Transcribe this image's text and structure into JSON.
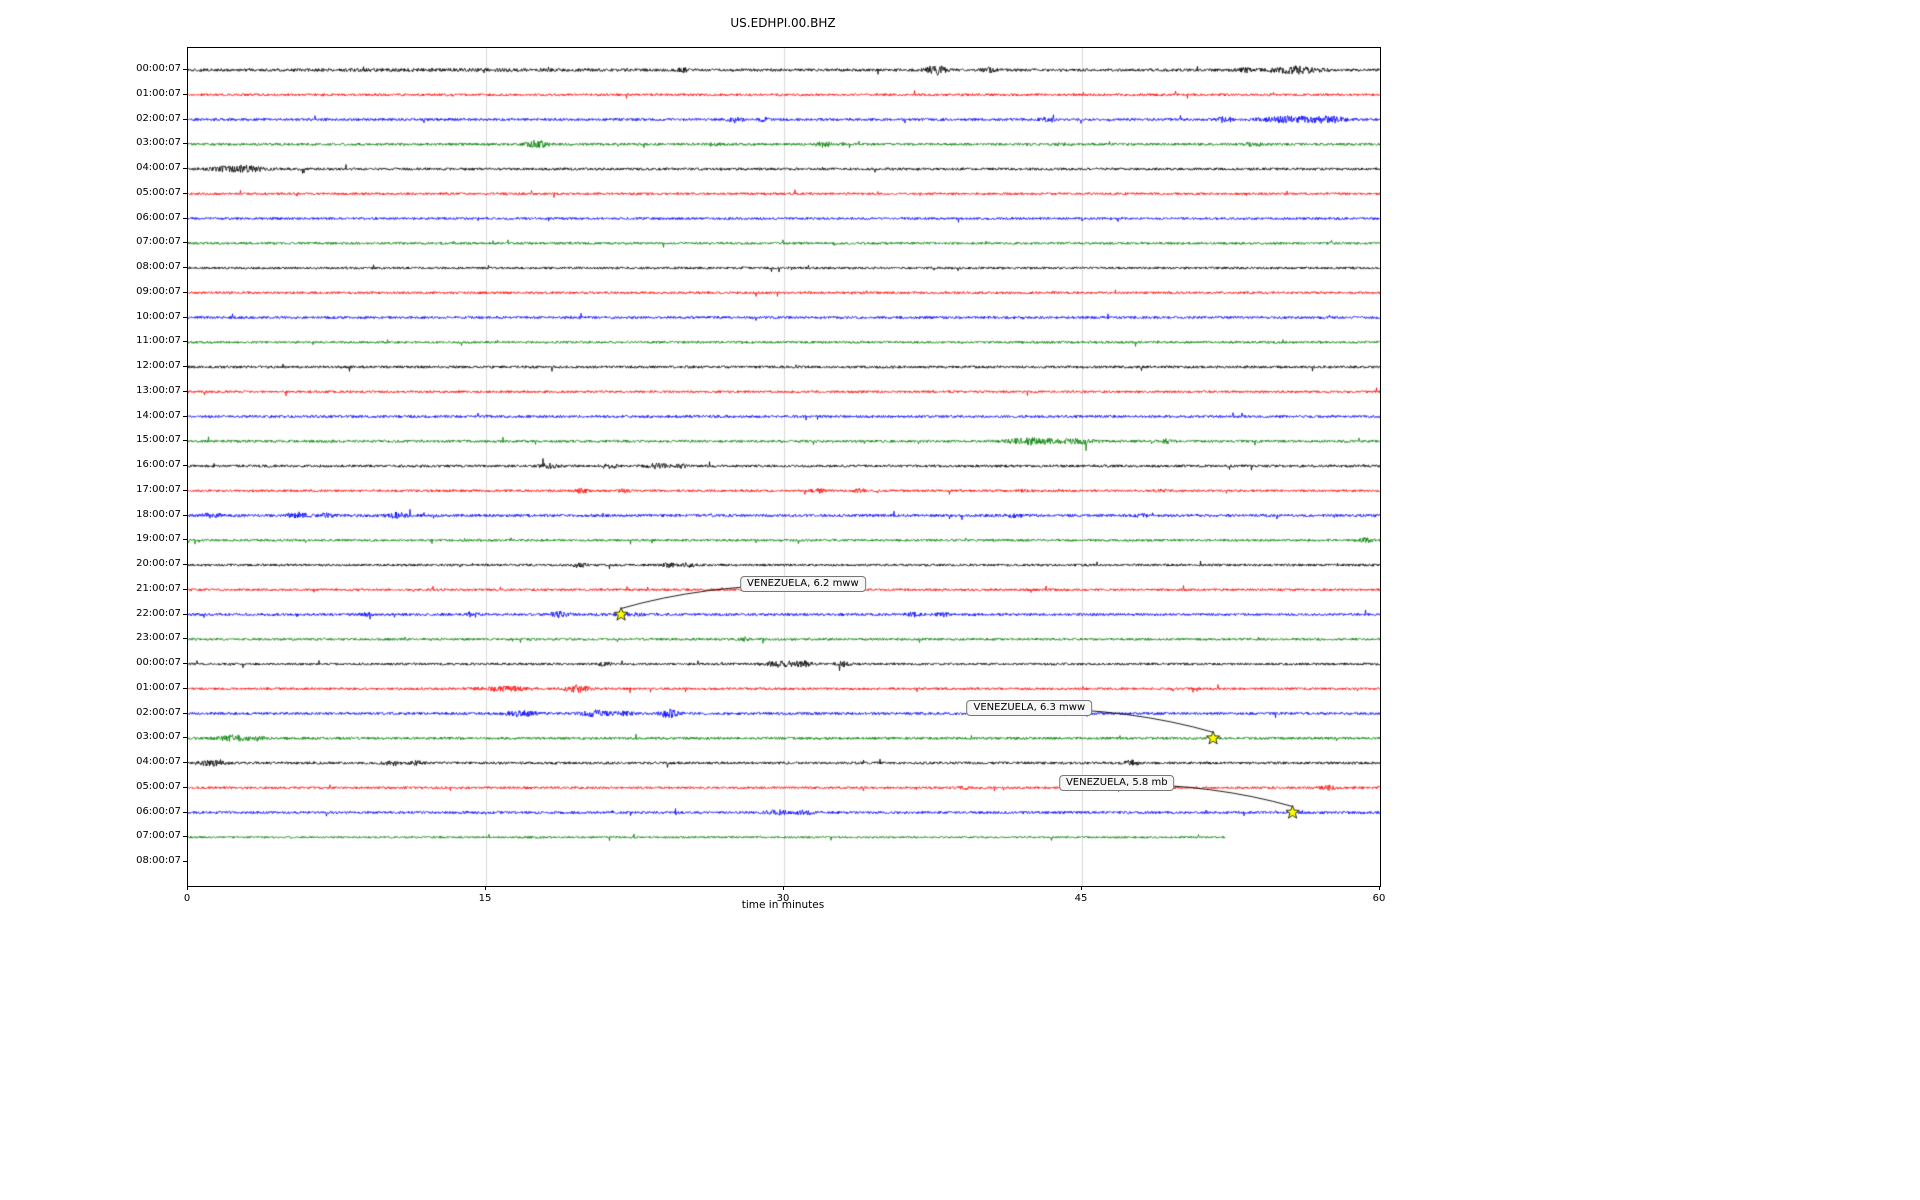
{
  "chart_data": {
    "type": "line",
    "title": "US.EDHPI.00.BHZ",
    "xlabel": "time in minutes",
    "xlim": [
      0,
      60
    ],
    "x_ticks": [
      0,
      15,
      30,
      45,
      60
    ],
    "grid_x": [
      15,
      30,
      45
    ],
    "grid_color": "#d9d9d9",
    "star_color": "#ffff00",
    "trace_color_cycle": [
      "#000000",
      "#ff0000",
      "#0000ff",
      "#008000"
    ],
    "rows": [
      {
        "label": "00:00:07",
        "color": "#000000",
        "end": 60,
        "amp": 1.4,
        "bursts": [
          [
            14,
            8,
            0.35
          ],
          [
            25,
            0.3,
            1.5
          ],
          [
            37.6,
            0.5,
            3.0
          ],
          [
            40.3,
            0.3,
            1.5
          ],
          [
            53.2,
            0.5,
            1.2
          ],
          [
            55.8,
            1.2,
            2.2
          ]
        ]
      },
      {
        "label": "01:00:07",
        "color": "#ff0000",
        "end": 60,
        "amp": 1.2,
        "bursts": []
      },
      {
        "label": "02:00:07",
        "color": "#0000ff",
        "end": 60,
        "amp": 1.3,
        "bursts": [
          [
            27.6,
            0.4,
            1.8
          ],
          [
            29.0,
            0.3,
            1.2
          ],
          [
            43.3,
            0.4,
            1.5
          ],
          [
            52.2,
            0.4,
            2.0
          ],
          [
            55.5,
            1.5,
            2.0
          ],
          [
            57.5,
            0.8,
            1.8
          ]
        ]
      },
      {
        "label": "03:00:07",
        "color": "#008000",
        "end": 60,
        "amp": 1.3,
        "bursts": [
          [
            17.6,
            0.5,
            2.5
          ],
          [
            26.5,
            0.3,
            1.0
          ],
          [
            32.0,
            0.4,
            1.5
          ],
          [
            44.0,
            0.3,
            0.8
          ],
          [
            53.6,
            0.4,
            1.5
          ]
        ]
      },
      {
        "label": "04:00:07",
        "color": "#000000",
        "end": 60,
        "amp": 1.3,
        "bursts": [
          [
            1.5,
            0.4,
            1.2
          ],
          [
            2.8,
            1.0,
            2.2
          ]
        ]
      },
      {
        "label": "05:00:07",
        "color": "#ff0000",
        "end": 60,
        "amp": 1.2,
        "bursts": []
      },
      {
        "label": "06:00:07",
        "color": "#0000ff",
        "end": 60,
        "amp": 1.2,
        "bursts": []
      },
      {
        "label": "07:00:07",
        "color": "#008000",
        "end": 60,
        "amp": 1.2,
        "bursts": []
      },
      {
        "label": "08:00:07",
        "color": "#000000",
        "end": 60,
        "amp": 1.2,
        "bursts": []
      },
      {
        "label": "09:00:07",
        "color": "#ff0000",
        "end": 60,
        "amp": 1.2,
        "bursts": []
      },
      {
        "label": "10:00:07",
        "color": "#0000ff",
        "end": 60,
        "amp": 1.3,
        "bursts": []
      },
      {
        "label": "11:00:07",
        "color": "#008000",
        "end": 60,
        "amp": 1.2,
        "bursts": []
      },
      {
        "label": "12:00:07",
        "color": "#000000",
        "end": 60,
        "amp": 1.3,
        "bursts": []
      },
      {
        "label": "13:00:07",
        "color": "#ff0000",
        "end": 60,
        "amp": 1.2,
        "bursts": []
      },
      {
        "label": "14:00:07",
        "color": "#0000ff",
        "end": 60,
        "amp": 1.3,
        "bursts": []
      },
      {
        "label": "15:00:07",
        "color": "#008000",
        "end": 60,
        "amp": 1.3,
        "bursts": [
          [
            42.5,
            1.2,
            2.2
          ],
          [
            44.8,
            0.8,
            1.5
          ],
          [
            49.3,
            0.3,
            1.2
          ]
        ]
      },
      {
        "label": "16:00:07",
        "color": "#000000",
        "end": 60,
        "amp": 1.3,
        "bursts": [
          [
            18.2,
            0.4,
            1.5
          ],
          [
            21.2,
            0.4,
            1.5
          ],
          [
            23.7,
            0.5,
            1.8
          ],
          [
            24.8,
            0.3,
            1.2
          ]
        ]
      },
      {
        "label": "17:00:07",
        "color": "#ff0000",
        "end": 60,
        "amp": 1.2,
        "bursts": [
          [
            19.8,
            0.3,
            1.5
          ],
          [
            22.0,
            0.3,
            1.3
          ],
          [
            31.7,
            0.3,
            1.5
          ],
          [
            33.8,
            0.3,
            1.3
          ],
          [
            42.0,
            0.3,
            0.8
          ],
          [
            49.0,
            0.3,
            0.8
          ]
        ]
      },
      {
        "label": "18:00:07",
        "color": "#0000ff",
        "end": 60,
        "amp": 1.4,
        "bursts": [
          [
            1.2,
            0.4,
            1.5
          ],
          [
            5.5,
            0.5,
            1.8
          ],
          [
            7.0,
            0.4,
            1.2
          ],
          [
            10.5,
            0.5,
            1.6
          ],
          [
            41.5,
            0.3,
            0.8
          ],
          [
            48.0,
            0.3,
            0.8
          ]
        ]
      },
      {
        "label": "19:00:07",
        "color": "#008000",
        "end": 60,
        "amp": 1.2,
        "bursts": [
          [
            59.3,
            0.4,
            1.3
          ]
        ]
      },
      {
        "label": "20:00:07",
        "color": "#000000",
        "end": 60,
        "amp": 1.2,
        "bursts": [
          [
            19.7,
            0.3,
            1.8
          ],
          [
            24.2,
            0.3,
            1.5
          ],
          [
            25.2,
            0.3,
            1.5
          ]
        ]
      },
      {
        "label": "21:00:07",
        "color": "#ff0000",
        "end": 60,
        "amp": 1.2,
        "bursts": []
      },
      {
        "label": "22:00:07",
        "color": "#0000ff",
        "end": 60,
        "amp": 1.3,
        "bursts": [
          [
            9.0,
            0.3,
            1.0
          ],
          [
            14.3,
            0.3,
            1.8
          ],
          [
            18.7,
            0.5,
            1.8
          ],
          [
            22.3,
            1.5,
            0.6
          ],
          [
            36.5,
            0.4,
            1.2
          ],
          [
            38.0,
            0.3,
            1.2
          ]
        ]
      },
      {
        "label": "23:00:07",
        "color": "#008000",
        "end": 60,
        "amp": 1.2,
        "bursts": [
          [
            28.0,
            0.3,
            1.2
          ]
        ]
      },
      {
        "label": "00:00:07",
        "color": "#000000",
        "end": 60,
        "amp": 1.2,
        "bursts": [
          [
            21.0,
            0.3,
            1.8
          ],
          [
            29.8,
            0.8,
            2.2
          ],
          [
            31.0,
            0.4,
            1.8
          ],
          [
            33.0,
            0.4,
            1.5
          ]
        ]
      },
      {
        "label": "01:00:07",
        "color": "#ff0000",
        "end": 60,
        "amp": 1.2,
        "bursts": [
          [
            16.0,
            1.2,
            1.5
          ],
          [
            19.6,
            0.6,
            2.5
          ]
        ]
      },
      {
        "label": "02:00:07",
        "color": "#0000ff",
        "end": 60,
        "amp": 1.3,
        "bursts": [
          [
            16.8,
            0.8,
            1.8
          ],
          [
            20.6,
            0.8,
            2.0
          ],
          [
            22.0,
            0.4,
            1.2
          ],
          [
            24.2,
            0.4,
            2.8
          ]
        ]
      },
      {
        "label": "03:00:07",
        "color": "#008000",
        "end": 60,
        "amp": 1.3,
        "bursts": [
          [
            2.3,
            0.8,
            1.8
          ],
          [
            3.5,
            0.4,
            1.2
          ]
        ]
      },
      {
        "label": "04:00:07",
        "color": "#000000",
        "end": 60,
        "amp": 1.3,
        "bursts": [
          [
            1.2,
            0.6,
            1.8
          ],
          [
            10.3,
            0.4,
            1.5
          ],
          [
            11.5,
            0.3,
            1.2
          ],
          [
            47.5,
            0.4,
            1.5
          ]
        ]
      },
      {
        "label": "05:00:07",
        "color": "#ff0000",
        "end": 60,
        "amp": 1.2,
        "bursts": [
          [
            39.0,
            0.3,
            1.3
          ],
          [
            46.5,
            0.3,
            1.2
          ],
          [
            57.5,
            0.4,
            1.5
          ]
        ]
      },
      {
        "label": "06:00:07",
        "color": "#0000ff",
        "end": 60,
        "amp": 1.3,
        "bursts": [
          [
            29.7,
            0.6,
            1.5
          ],
          [
            31.0,
            0.4,
            1.3
          ]
        ]
      },
      {
        "label": "07:00:07",
        "color": "#008000",
        "end": 52.2,
        "amp": 1.0,
        "bursts": [
          [
            17.5,
            1.0,
            0.4
          ]
        ]
      },
      {
        "label": "08:00:07",
        "color": "#000000",
        "end": 0,
        "amp": 0,
        "bursts": []
      }
    ],
    "events": [
      {
        "label": "VENEZUELA, 6.2 mww",
        "star_minute": 21.8,
        "star_row": 22,
        "box_minute": 31.0,
        "box_row": 20.8
      },
      {
        "label": "VENEZUELA, 6.3 mww",
        "star_minute": 51.6,
        "star_row": 27,
        "box_minute": 42.4,
        "box_row": 25.8
      },
      {
        "label": "VENEZUELA, 5.8 mb",
        "star_minute": 55.6,
        "star_row": 30,
        "box_minute": 46.8,
        "box_row": 28.85
      }
    ]
  }
}
